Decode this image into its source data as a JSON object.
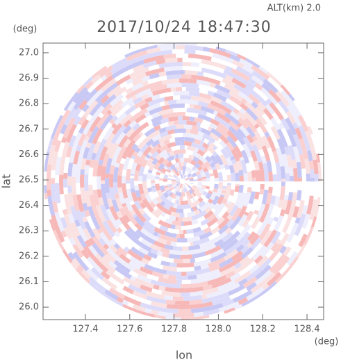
{
  "chart_data": {
    "type": "ppi",
    "title": "2017/10/24 18:47:30",
    "subtitle": "ALT(km) 2.0",
    "x_label": "lon",
    "y_label": "lat",
    "x_unit": "(deg)",
    "y_unit": "(deg)",
    "xlim": [
      127.209,
      128.475
    ],
    "ylim": [
      25.951,
      27.038
    ],
    "xticks": [
      127.4,
      127.6,
      127.8,
      {
        "value": 128,
        "label": "128.0"
      },
      128.2,
      128.4
    ],
    "yticks": [
      {
        "value": 26,
        "label": "26.0"
      },
      26.1,
      26.2,
      26.3,
      26.4,
      26.5,
      26.6,
      26.7,
      26.8,
      26.9,
      {
        "value": 27,
        "label": "27.0"
      }
    ]
  }
}
